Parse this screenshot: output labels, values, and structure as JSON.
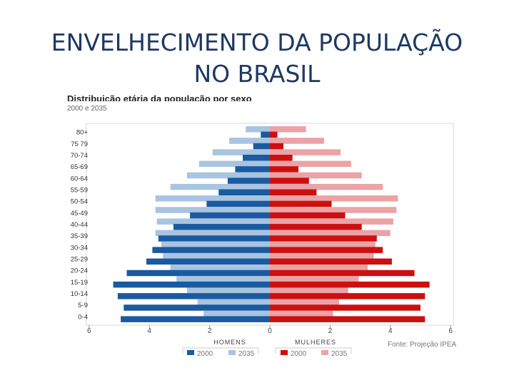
{
  "slide": {
    "title_line1": "ENVELHECIMENTO DA POPULAÇÃO",
    "title_line2": "NO BRASIL"
  },
  "colors": {
    "men_2000": "#1a5aa0",
    "men_2035": "#a8c4e0",
    "women_2000": "#cc1010",
    "women_2035": "#eba3a6",
    "title": "#1f3864"
  },
  "chart_data": {
    "type": "bar",
    "orientation": "horizontal-pyramid",
    "title": "Distribuição etária da população por sexo",
    "subtitle": "2000 e 2035",
    "source": "Fonte: Projeção IPEA",
    "categories": [
      "80+",
      "75-79",
      "70-74",
      "65-69",
      "60-64",
      "55-59",
      "50-54",
      "45-49",
      "40-44",
      "35-39",
      "30-34",
      "25-29",
      "20-24",
      "15-19",
      "10-14",
      "5-9",
      "0-4"
    ],
    "category_labels": [
      "80+",
      "75 79",
      "70-74",
      "65-69",
      "60-64",
      "55-59",
      "50-54",
      "45-49",
      "40-44",
      "35-39",
      "30-34",
      "25-29",
      "20-24",
      "15-19",
      "10-14",
      "5-9",
      "0-4"
    ],
    "men_axis_label": "HOMENS",
    "women_axis_label": "MULHERES",
    "xlim": [
      -6,
      6
    ],
    "x_ticks": [
      -6,
      -4,
      -2,
      0,
      2,
      4,
      6
    ],
    "x_tick_labels": [
      "6",
      "4",
      "2",
      "0",
      "2",
      "4",
      "6"
    ],
    "series": [
      {
        "name": "2000",
        "sex": "men",
        "values": [
          0.3,
          0.55,
          0.9,
          1.15,
          1.4,
          1.7,
          2.1,
          2.65,
          3.2,
          3.7,
          3.9,
          4.1,
          4.75,
          5.2,
          5.05,
          4.85,
          4.95
        ]
      },
      {
        "name": "2035",
        "sex": "men",
        "values": [
          0.8,
          1.35,
          1.9,
          2.35,
          2.75,
          3.3,
          3.8,
          3.8,
          3.75,
          3.8,
          3.6,
          3.55,
          3.3,
          3.1,
          2.75,
          2.4,
          2.2
        ]
      },
      {
        "name": "2000",
        "sex": "women",
        "values": [
          0.25,
          0.45,
          0.75,
          0.95,
          1.3,
          1.55,
          2.05,
          2.5,
          3.05,
          3.55,
          3.75,
          4.05,
          4.8,
          5.3,
          5.15,
          5.0,
          5.15
        ]
      },
      {
        "name": "2035",
        "sex": "women",
        "values": [
          1.2,
          1.8,
          2.35,
          2.7,
          3.05,
          3.75,
          4.25,
          4.2,
          4.1,
          4.0,
          3.5,
          3.45,
          3.25,
          2.95,
          2.6,
          2.3,
          2.1
        ]
      }
    ],
    "legend": {
      "men_group": [
        "2000",
        "2035"
      ],
      "women_group": [
        "2000",
        "2035"
      ]
    }
  }
}
